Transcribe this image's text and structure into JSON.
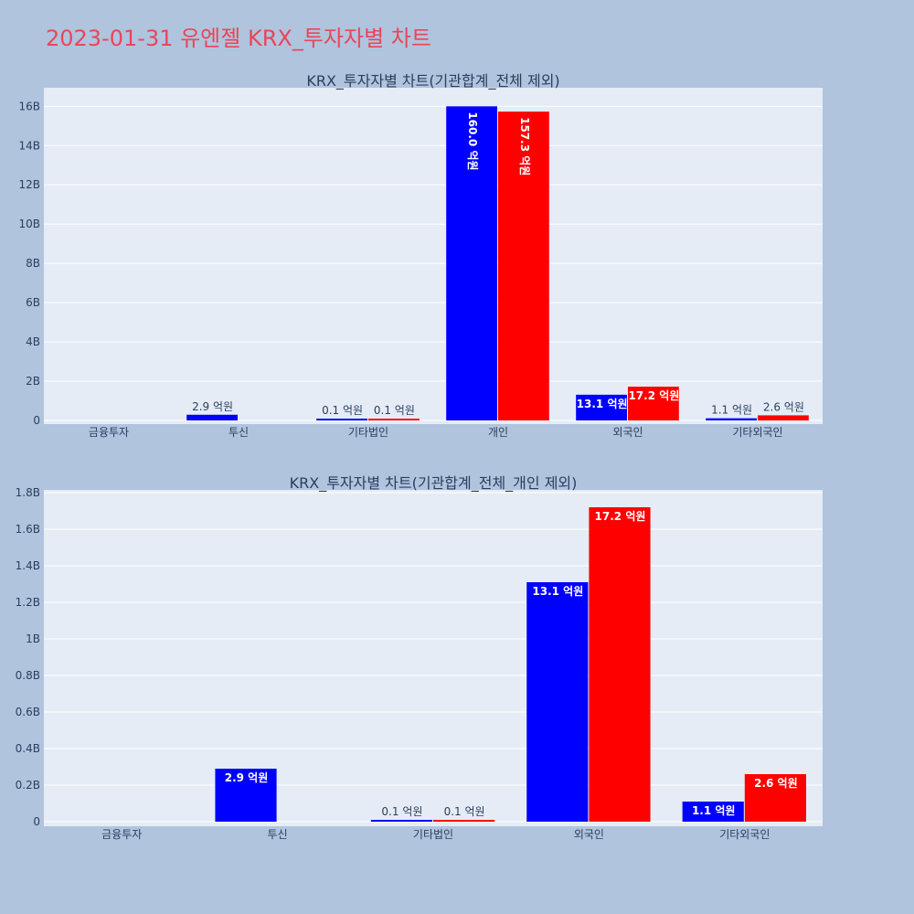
{
  "title": "2023-01-31 유엔젤 KRX_투자자별 차트",
  "colors": {
    "buy": "#0000ff",
    "sell": "#ff0000",
    "title": "#e8465a",
    "background": "#b0c4de",
    "plot": "#e5ecf6"
  },
  "chart_data": [
    {
      "type": "bar",
      "title": "KRX_투자자별 차트(기관합계_전체 제외)",
      "categories": [
        "금융투자",
        "투신",
        "기타법인",
        "개인",
        "외국인",
        "기타외국인"
      ],
      "y_ticks": [
        0,
        2,
        4,
        6,
        8,
        10,
        12,
        14,
        16
      ],
      "y_tick_labels": [
        "0",
        "2B",
        "4B",
        "6B",
        "8B",
        "10B",
        "12B",
        "14B",
        "16B"
      ],
      "ylim": [
        0,
        16.9
      ],
      "unit_note": "values in billions",
      "grid": true,
      "series": [
        {
          "color": "#0000ff",
          "values": [
            0,
            0.29,
            0.01,
            16.0,
            1.31,
            0.11
          ],
          "labels": [
            "",
            "2.9 억원",
            "0.1 억원",
            "160.0 억원",
            "13.1 억원",
            "1.1 억원"
          ]
        },
        {
          "color": "#ff0000",
          "values": [
            0,
            0,
            0.01,
            15.73,
            1.72,
            0.26
          ],
          "labels": [
            "",
            "",
            "0.1 억원",
            "157.3 억원",
            "17.2 억원",
            "2.6 억원"
          ]
        }
      ]
    },
    {
      "type": "bar",
      "title": "KRX_투자자별 차트(기관합계_전체_개인 제외)",
      "categories": [
        "금융투자",
        "투신",
        "기타법인",
        "외국인",
        "기타외국인"
      ],
      "y_ticks": [
        0,
        0.2,
        0.4,
        0.6,
        0.8,
        1.0,
        1.2,
        1.4,
        1.6,
        1.8
      ],
      "y_tick_labels": [
        "0",
        "0.2B",
        "0.4B",
        "0.6B",
        "0.8B",
        "1B",
        "1.2B",
        "1.4B",
        "1.6B",
        "1.8B"
      ],
      "ylim": [
        0,
        1.81
      ],
      "unit_note": "values in billions",
      "grid": true,
      "series": [
        {
          "color": "#0000ff",
          "values": [
            0,
            0.29,
            0.01,
            1.31,
            0.11
          ],
          "labels": [
            "",
            "2.9 억원",
            "0.1 억원",
            "13.1 억원",
            "1.1 억원"
          ]
        },
        {
          "color": "#ff0000",
          "values": [
            0,
            0,
            0.01,
            1.72,
            0.26
          ],
          "labels": [
            "",
            "",
            "0.1 억원",
            "17.2 억원",
            "2.6 억원"
          ]
        }
      ]
    }
  ]
}
